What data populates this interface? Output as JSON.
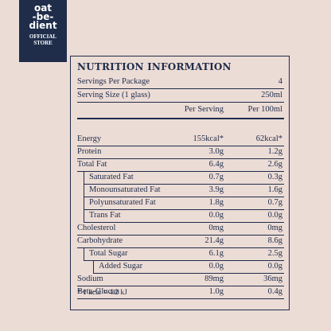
{
  "logo": {
    "lines": [
      "oat",
      "-be-",
      "dient"
    ],
    "store": [
      "OFFICIAL",
      "STORE"
    ]
  },
  "panel": {
    "title": "NUTRITION INFORMATION",
    "servings": [
      [
        "Servings Per Package",
        "4"
      ],
      [
        "Serving Size (1 glass)",
        "250ml"
      ]
    ],
    "header": [
      "Per Serving",
      "Per 100ml"
    ],
    "rows": [
      [
        "Energy",
        "155kcal*",
        "62kcal*"
      ],
      [
        "Protein",
        "3.0g",
        "1.2g"
      ],
      [
        "Total Fat",
        "6.4g",
        "2.6g"
      ],
      [
        "Saturated Fat",
        "0.7g",
        "0.3g"
      ],
      [
        "Monounsaturated Fat",
        "3.9g",
        "1.6g"
      ],
      [
        "Polyunsaturated Fat",
        "1.8g",
        "0.7g"
      ],
      [
        "Trans Fat",
        "0.0g",
        "0.0g"
      ],
      [
        "Cholesterol",
        "0mg",
        "0mg"
      ],
      [
        "Carbohydrate",
        "21.4g",
        "8.6g"
      ],
      [
        "Total Sugar",
        "6.1g",
        "2.5g"
      ],
      [
        "Added Sugar",
        "0.0g",
        "0.0g"
      ],
      [
        "Sodium",
        "89mg",
        "36mg"
      ],
      [
        "Beta-Glucan",
        "1.0g",
        "0.4g"
      ]
    ],
    "footnote": "* 1 kcal = 4.2 kJ"
  }
}
